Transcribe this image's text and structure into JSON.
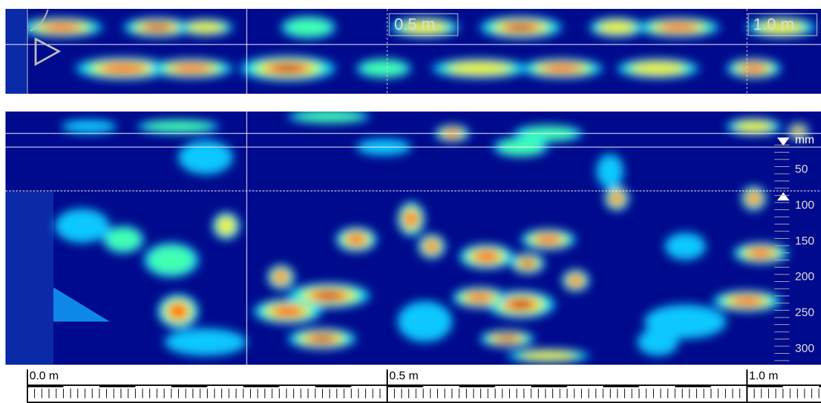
{
  "top_view": {
    "labels": [
      "0.5 m",
      "1.0 m"
    ]
  },
  "depth_scale": {
    "unit": "mm",
    "ticks": [
      "50",
      "100",
      "150",
      "200",
      "250",
      "300"
    ]
  },
  "ruler": {
    "labels": [
      "0.0 m",
      "0.5 m",
      "1.0 m"
    ]
  }
}
